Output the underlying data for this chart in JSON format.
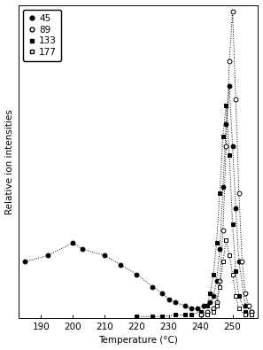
{
  "title": "",
  "xlabel": "Temperature (°C)",
  "ylabel": "Relative ion intensities",
  "xlim": [
    183,
    258
  ],
  "ylim": [
    0,
    100
  ],
  "xticks": [
    190,
    200,
    210,
    220,
    230,
    240,
    250
  ],
  "series": {
    "45": {
      "marker": "o",
      "filled": true,
      "color": "black",
      "x": [
        185,
        192,
        200,
        203,
        210,
        215,
        220,
        225,
        228,
        230,
        232,
        235,
        237,
        239,
        241,
        243,
        244,
        245,
        246,
        247,
        248,
        249,
        250,
        251,
        252,
        254,
        256
      ],
      "y": [
        18,
        20,
        24,
        22,
        20,
        17,
        14,
        10,
        8,
        6,
        5,
        4,
        3,
        3,
        4,
        5,
        7,
        12,
        22,
        42,
        62,
        74,
        55,
        35,
        18,
        4,
        2
      ]
    },
    "89": {
      "marker": "o",
      "filled": false,
      "color": "black",
      "x": [
        240,
        242,
        244,
        245,
        246,
        247,
        248,
        249,
        250,
        251,
        252,
        253,
        254,
        255,
        256
      ],
      "y": [
        1,
        2,
        3,
        5,
        12,
        28,
        55,
        82,
        98,
        70,
        40,
        18,
        8,
        4,
        2
      ]
    },
    "133": {
      "marker": "s",
      "filled": true,
      "color": "black",
      "x": [
        220,
        225,
        228,
        232,
        235,
        237,
        240,
        242,
        243,
        244,
        245,
        246,
        247,
        248,
        249,
        250,
        251,
        252,
        254,
        256
      ],
      "y": [
        0.5,
        0.5,
        0.5,
        1,
        1,
        1,
        2,
        4,
        8,
        14,
        24,
        40,
        58,
        68,
        52,
        30,
        15,
        7,
        2,
        1
      ]
    },
    "177": {
      "marker": "s",
      "filled": false,
      "color": "black",
      "x": [
        240,
        242,
        244,
        245,
        246,
        247,
        248,
        249,
        250,
        251,
        252,
        254,
        256
      ],
      "y": [
        1,
        1,
        2,
        4,
        10,
        18,
        25,
        20,
        14,
        7,
        3,
        1,
        1
      ]
    }
  },
  "background_color": "#ffffff",
  "fontsize": 7.5
}
